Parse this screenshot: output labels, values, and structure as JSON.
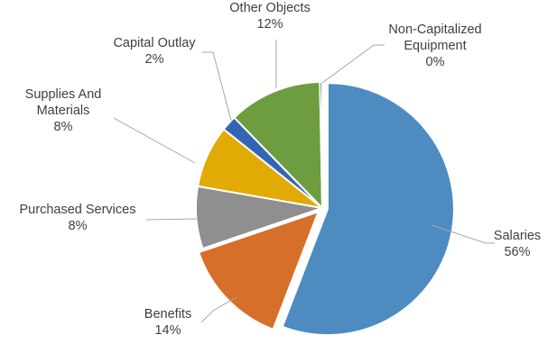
{
  "chart_data": {
    "type": "pie",
    "title": "",
    "slices": [
      {
        "name": "Salaries",
        "label": "Salaries",
        "value": 56,
        "display": "56%",
        "color": "#4e8bc0",
        "exploded": true
      },
      {
        "name": "Benefits",
        "label": "Benefits",
        "value": 14,
        "display": "14%",
        "color": "#d56f2a",
        "exploded": true
      },
      {
        "name": "Purchased Services",
        "label": "Purchased Services",
        "value": 8,
        "display": "8%",
        "color": "#8f8f8f",
        "exploded": false
      },
      {
        "name": "Supplies And Materials",
        "label": "Supplies And\nMaterials",
        "value": 8,
        "display": "8%",
        "color": "#e1aa05",
        "exploded": false
      },
      {
        "name": "Capital Outlay",
        "label": "Capital Outlay",
        "value": 2,
        "display": "2%",
        "color": "#3465b5",
        "exploded": false
      },
      {
        "name": "Other Objects",
        "label": "Other Objects",
        "value": 12,
        "display": "12%",
        "color": "#6d9d3e",
        "exploded": false
      },
      {
        "name": "Non-Capitalized Equipment",
        "label": "Non-Capitalized\nEquipment",
        "value": 0.3,
        "display": "0%",
        "color": "#1f3a6e",
        "exploded": false
      }
    ],
    "start": "12 o'clock",
    "direction": "clockwise",
    "legend": "none",
    "data_labels": "outside with leader lines"
  }
}
